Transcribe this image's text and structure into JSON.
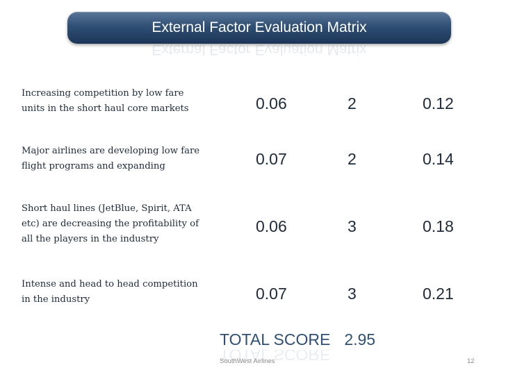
{
  "title": "External Factor Evaluation Matrix",
  "rows": [
    {
      "factor_line1": "Increasing competition by low fare",
      "factor_line2": "units in the short haul core markets",
      "factor_line3": "",
      "weight": "0.06",
      "rating": "2",
      "weighted_score": "0.12"
    },
    {
      "factor_line1": "Major airlines are developing low fare",
      "factor_line2": "flight programs and expanding",
      "factor_line3": "",
      "weight": "0.07",
      "rating": "2",
      "weighted_score": "0.14"
    },
    {
      "factor_line1": "Short haul lines (JetBlue, Spirit, ATA",
      "factor_line2": "etc) are decreasing the profitability of",
      "factor_line3": "all the players in the industry",
      "weight": "0.06",
      "rating": "3",
      "weighted_score": "0.18"
    },
    {
      "factor_line1": "Intense and head to head competition",
      "factor_line2": "in the industry",
      "factor_line3": "",
      "weight": "0.07",
      "rating": "3",
      "weighted_score": "0.21"
    }
  ],
  "total": {
    "label": "TOTAL SCORE",
    "value": "2.95"
  },
  "footer": {
    "company": "SouthWest Airlines",
    "slide_number": "12"
  },
  "colors": {
    "title_bar": "#2f4f74",
    "total_text": "#2f4f74",
    "body_text": "#1e2a3a"
  }
}
